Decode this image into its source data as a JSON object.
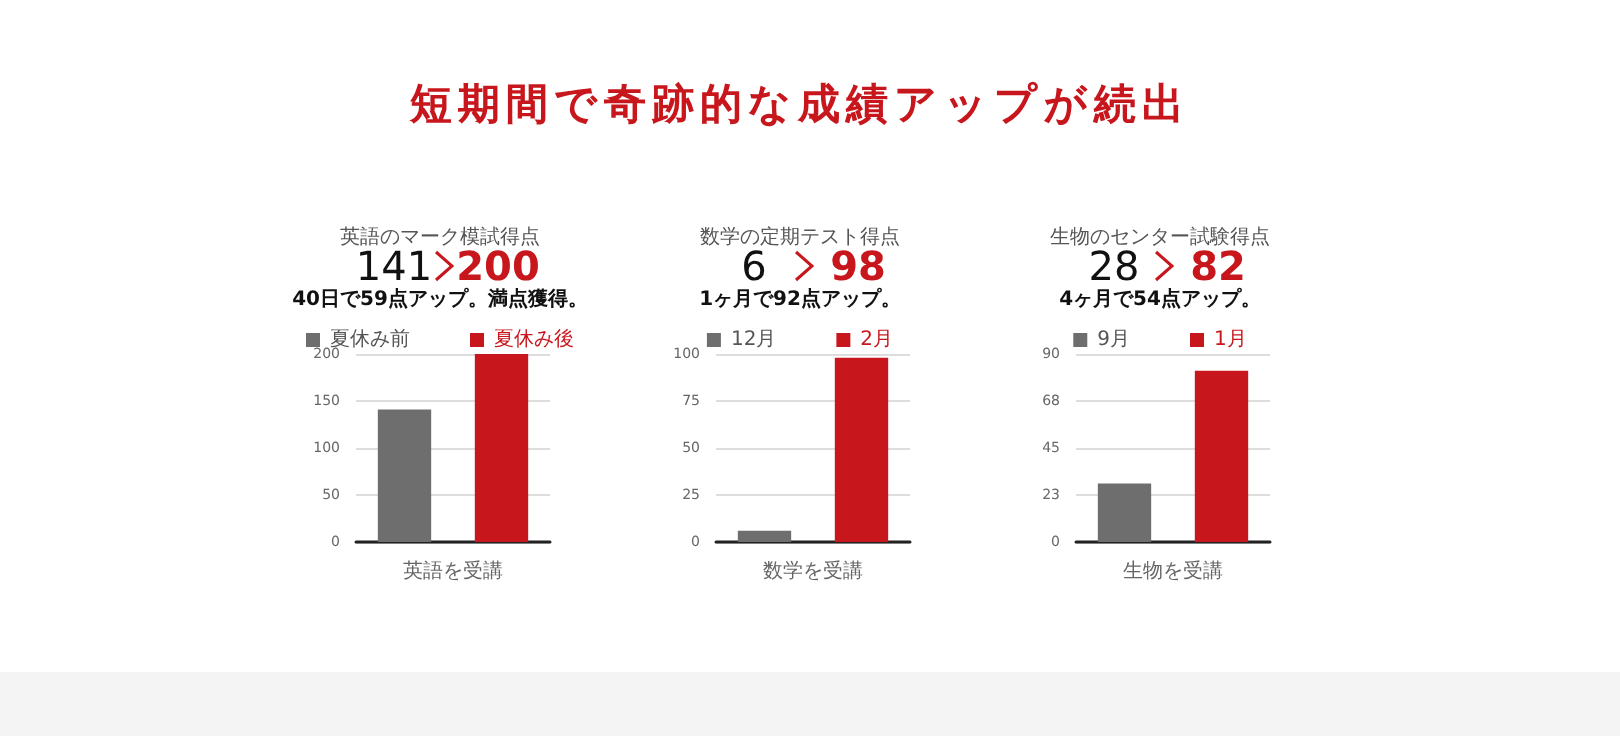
{
  "chart_data": [
    {
      "type": "other",
      "title": "短期間で奇跡的な成績アップが続出"
    },
    {
      "type": "bar",
      "title": "英語のマーク模試得点",
      "annotations": [
        "141",
        "200",
        "40日で59点アップ。満点獲得。"
      ],
      "xlabel": "英語を受講",
      "categories": [
        null,
        null
      ],
      "series": [
        {
          "name": "夏休み前",
          "color": "#6e6e6e",
          "values": [
            141,
            null
          ]
        },
        {
          "name": "夏休み後",
          "color": "#c8161d",
          "values": [
            null,
            200
          ]
        }
      ],
      "ylim": [
        0,
        200
      ],
      "yticks": [
        0,
        50,
        100,
        150,
        200
      ],
      "grid": "y",
      "legend": "top"
    },
    {
      "type": "bar",
      "title": "数学の定期テスト得点",
      "annotations": [
        "6",
        "98",
        "1ヶ月で92点アップ。"
      ],
      "xlabel": "数学を受講",
      "categories": [
        null,
        null
      ],
      "series": [
        {
          "name": "12月",
          "color": "#6e6e6e",
          "values": [
            6,
            null
          ]
        },
        {
          "name": "2月",
          "color": "#c8161d",
          "values": [
            null,
            98
          ]
        }
      ],
      "ylim": [
        0,
        100
      ],
      "yticks": [
        0,
        25,
        50,
        75,
        100
      ],
      "grid": "y",
      "legend": "top"
    },
    {
      "type": "bar",
      "title": "生物のセンター試験得点",
      "annotations": [
        "28",
        "82",
        "4ヶ月で54点アップ。"
      ],
      "xlabel": "生物を受講",
      "categories": [
        null,
        null
      ],
      "series": [
        {
          "name": "9月",
          "color": "#6e6e6e",
          "values": [
            28,
            null
          ]
        },
        {
          "name": "1月",
          "color": "#c8161d",
          "values": [
            null,
            82
          ]
        }
      ],
      "ylim": [
        0,
        90
      ],
      "yticks": [
        0,
        {
          "value": 22.5,
          "label": "23"
        },
        45,
        {
          "value": 67.5,
          "label": "68"
        },
        90
      ],
      "grid": "y",
      "legend": "top"
    }
  ]
}
